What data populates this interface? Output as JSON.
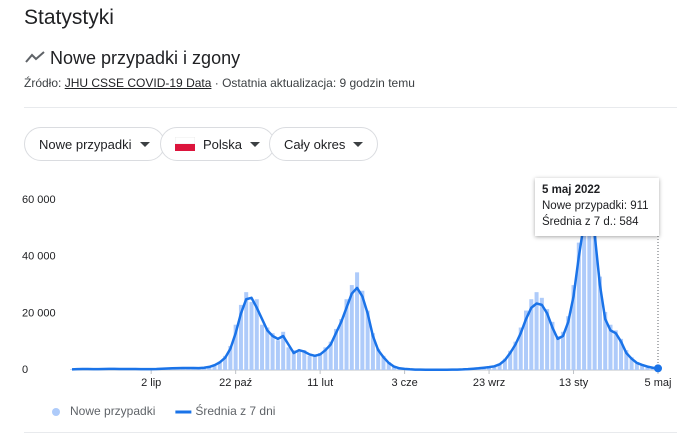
{
  "header": {
    "title": "Statystyki",
    "subtitle": "Nowe przypadki i zgony",
    "source_label": "Źródło:",
    "source_link": "JHU CSSE COVID-19 Data",
    "update": "· Ostatnia aktualizacja: 9 godzin temu"
  },
  "filters": [
    "Nowe przypadki",
    "Polska",
    "Cały okres"
  ],
  "tooltip": {
    "date": "5 maj 2022",
    "rows": [
      "Nowe przypadki:",
      "Średnia z 7 d.:"
    ]
  },
  "chart_data": {
    "type": "bar",
    "categories": [
      null,
      null,
      null,
      null,
      null,
      null,
      null,
      null,
      null,
      null,
      null,
      null,
      null,
      null,
      null,
      "2 lip",
      null,
      null,
      null,
      null,
      null,
      null,
      null,
      null,
      null,
      null,
      null,
      null,
      null,
      null,
      null,
      "22 paź",
      null,
      null,
      null,
      null,
      null,
      null,
      null,
      null,
      null,
      null,
      null,
      null,
      null,
      null,
      null,
      "11 lut",
      null,
      null,
      null,
      null,
      null,
      null,
      null,
      null,
      null,
      null,
      null,
      null,
      null,
      null,
      null,
      "3 cze",
      null,
      null,
      null,
      null,
      null,
      null,
      null,
      null,
      null,
      null,
      null,
      null,
      null,
      null,
      null,
      "23 wrz",
      null,
      null,
      null,
      null,
      null,
      null,
      null,
      null,
      null,
      null,
      null,
      null,
      null,
      null,
      null,
      "13 sty",
      null,
      null,
      null,
      null,
      null,
      null,
      null,
      null,
      null,
      null,
      null,
      null,
      null,
      null,
      null,
      "5 maj"
    ],
    "series": [
      {
        "name": "Nowe przypadki",
        "type": "bar",
        "color": "#aecbfa",
        "values": [
          250,
          350,
          400,
          300,
          250,
          350,
          400,
          450,
          350,
          300,
          400,
          300,
          400,
          250,
          350,
          250,
          400,
          500,
          600,
          550,
          700,
          750,
          650,
          800,
          600,
          900,
          1300,
          2000,
          3000,
          5000,
          8500,
          16000,
          23000,
          27500,
          24000,
          25000,
          16000,
          15000,
          13000,
          10500,
          13500,
          8000,
          7000,
          6500,
          7000,
          5000,
          5500,
          6000,
          8000,
          10000,
          14500,
          18000,
          25000,
          30000,
          34500,
          28000,
          21000,
          13000,
          7500,
          5000,
          2800,
          1300,
          700,
          450,
          300,
          180,
          130,
          110,
          100,
          80,
          120,
          100,
          140,
          170,
          230,
          350,
          500,
          700,
          900,
          1100,
          1500,
          2300,
          4000,
          6800,
          10000,
          15000,
          21000,
          25000,
          27500,
          25500,
          21500,
          17000,
          12000,
          13500,
          19000,
          30000,
          45000,
          57500,
          51000,
          53000,
          33000,
          20500,
          16000,
          14000,
          11000,
          7000,
          4500,
          2800,
          2000,
          1300,
          900,
          911
        ]
      },
      {
        "name": "Średnia z 7 dni",
        "type": "line",
        "color": "#1a73e8",
        "values": [
          200,
          300,
          350,
          350,
          300,
          300,
          350,
          400,
          400,
          350,
          350,
          350,
          350,
          300,
          300,
          300,
          350,
          450,
          550,
          600,
          650,
          700,
          700,
          700,
          650,
          800,
          1100,
          1700,
          2700,
          4300,
          7500,
          13000,
          20000,
          25000,
          25500,
          22000,
          18000,
          14000,
          12000,
          11000,
          12000,
          9000,
          6000,
          7000,
          6500,
          5500,
          5000,
          5500,
          7000,
          9000,
          13000,
          17000,
          22000,
          27000,
          29000,
          26000,
          20000,
          12000,
          7000,
          4500,
          2500,
          1200,
          600,
          400,
          250,
          150,
          120,
          100,
          90,
          90,
          100,
          110,
          120,
          150,
          200,
          300,
          450,
          600,
          800,
          1000,
          1300,
          2000,
          3500,
          6000,
          9000,
          13000,
          18000,
          22000,
          23500,
          23000,
          20000,
          15000,
          11000,
          12000,
          17000,
          26000,
          40000,
          52000,
          56000,
          48000,
          30000,
          18000,
          14000,
          13000,
          10000,
          6000,
          4000,
          2500,
          1800,
          1200,
          800,
          584
        ]
      }
    ],
    "ylim": [
      0,
      65000
    ],
    "yticks": [
      0,
      {
        "value": 20000,
        "label": "20 000"
      },
      {
        "value": 40000,
        "label": "40 000"
      },
      {
        "value": 60000,
        "label": "60 000"
      }
    ],
    "grid": false
  }
}
